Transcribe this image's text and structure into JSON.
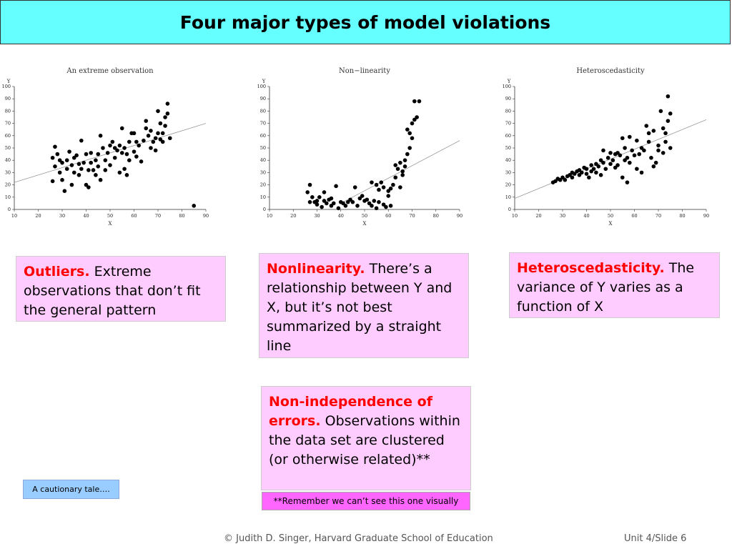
{
  "slide": {
    "title": "Four major types of model violations",
    "footer_left": "© Judith D. Singer, Harvard Graduate School of Education",
    "footer_right": "Unit 4/Slide 6",
    "cautionary_button": "A cautionary tale….",
    "remember_note": "**Remember we can’t see this one visually"
  },
  "boxes": {
    "outliers": {
      "heading": "Outliers.",
      "text": " Extreme observations that don’t fit the general pattern"
    },
    "nonlinearity": {
      "heading": "Nonlinearity.",
      "text": " There’s a relationship between Y and X, but it’s not best summarized by a straight line"
    },
    "hetero": {
      "heading": "Heteroscedasticity.",
      "text": " The variance of Y varies as a function of X"
    },
    "nonindep": {
      "heading": "Non-independence of errors.",
      "text": " Observations within the data set are clustered (or otherwise related)**"
    }
  },
  "colors": {
    "title_bg": "#66ffff",
    "box_bg": "#ffccff",
    "heading": "#ff0000",
    "note_bg": "#ff66ff",
    "button_bg": "#99ccff"
  },
  "chart_data": [
    {
      "type": "scatter",
      "title": "An extreme observation",
      "xlabel": "X",
      "ylabel": "Y",
      "xlim": [
        10,
        90
      ],
      "ylim": [
        0,
        100
      ],
      "xticks": [
        10,
        20,
        30,
        40,
        50,
        60,
        70,
        80,
        90
      ],
      "yticks": [
        0,
        10,
        20,
        30,
        40,
        50,
        60,
        70,
        80,
        90,
        100
      ],
      "fit_line": [
        [
          10,
          22
        ],
        [
          90,
          70
        ]
      ],
      "points": [
        [
          26,
          42
        ],
        [
          26,
          23
        ],
        [
          27,
          35
        ],
        [
          27,
          51
        ],
        [
          28,
          45
        ],
        [
          29,
          40
        ],
        [
          29,
          30
        ],
        [
          30,
          24
        ],
        [
          30,
          38
        ],
        [
          31,
          15
        ],
        [
          32,
          33
        ],
        [
          32,
          40
        ],
        [
          33,
          47
        ],
        [
          34,
          36
        ],
        [
          34,
          20
        ],
        [
          35,
          30
        ],
        [
          35,
          42
        ],
        [
          36,
          44
        ],
        [
          37,
          37
        ],
        [
          37,
          28
        ],
        [
          38,
          56
        ],
        [
          38,
          33
        ],
        [
          39,
          38
        ],
        [
          40,
          20
        ],
        [
          40,
          45
        ],
        [
          41,
          18
        ],
        [
          41,
          32
        ],
        [
          42,
          46
        ],
        [
          42,
          38
        ],
        [
          43,
          32
        ],
        [
          44,
          40
        ],
        [
          44,
          28
        ],
        [
          45,
          45
        ],
        [
          45,
          35
        ],
        [
          46,
          24
        ],
        [
          46,
          60
        ],
        [
          47,
          50
        ],
        [
          48,
          40
        ],
        [
          48,
          32
        ],
        [
          49,
          46
        ],
        [
          50,
          52
        ],
        [
          50,
          36
        ],
        [
          51,
          55
        ],
        [
          52,
          42
        ],
        [
          52,
          50
        ],
        [
          53,
          48
        ],
        [
          54,
          52
        ],
        [
          54,
          30
        ],
        [
          55,
          46
        ],
        [
          55,
          66
        ],
        [
          56,
          33
        ],
        [
          56,
          50
        ],
        [
          57,
          28
        ],
        [
          57,
          45
        ],
        [
          58,
          55
        ],
        [
          58,
          40
        ],
        [
          59,
          62
        ],
        [
          60,
          47
        ],
        [
          60,
          62
        ],
        [
          61,
          43
        ],
        [
          61,
          55
        ],
        [
          62,
          52
        ],
        [
          63,
          39
        ],
        [
          64,
          56
        ],
        [
          65,
          72
        ],
        [
          65,
          66
        ],
        [
          66,
          60
        ],
        [
          67,
          50
        ],
        [
          67,
          64
        ],
        [
          68,
          55
        ],
        [
          69,
          48
        ],
        [
          69,
          58
        ],
        [
          70,
          62
        ],
        [
          70,
          80
        ],
        [
          71,
          57
        ],
        [
          71,
          70
        ],
        [
          72,
          62
        ],
        [
          72,
          55
        ],
        [
          73,
          75
        ],
        [
          73,
          68
        ],
        [
          74,
          86
        ],
        [
          74,
          78
        ],
        [
          75,
          58
        ],
        [
          85,
          3
        ]
      ]
    },
    {
      "type": "scatter",
      "title": "Non−linearity",
      "xlabel": "X",
      "ylabel": "Y",
      "xlim": [
        10,
        90
      ],
      "ylim": [
        0,
        100
      ],
      "xticks": [
        10,
        20,
        30,
        40,
        50,
        60,
        70,
        80,
        90
      ],
      "yticks": [
        0,
        10,
        20,
        30,
        40,
        50,
        60,
        70,
        80,
        90,
        100
      ],
      "fit_line": [
        [
          40,
          5
        ],
        [
          90,
          56
        ]
      ],
      "points": [
        [
          26,
          14
        ],
        [
          27,
          20
        ],
        [
          27,
          6
        ],
        [
          28,
          10
        ],
        [
          29,
          6
        ],
        [
          30,
          4
        ],
        [
          30,
          7
        ],
        [
          31,
          10
        ],
        [
          32,
          2
        ],
        [
          33,
          14
        ],
        [
          33,
          7
        ],
        [
          34,
          5
        ],
        [
          35,
          8
        ],
        [
          36,
          9
        ],
        [
          36,
          3
        ],
        [
          37,
          5
        ],
        [
          38,
          19
        ],
        [
          39,
          1
        ],
        [
          40,
          6
        ],
        [
          41,
          5
        ],
        [
          42,
          3
        ],
        [
          43,
          6
        ],
        [
          44,
          8
        ],
        [
          45,
          6
        ],
        [
          46,
          18
        ],
        [
          47,
          3
        ],
        [
          48,
          9
        ],
        [
          49,
          11
        ],
        [
          50,
          7
        ],
        [
          51,
          8
        ],
        [
          52,
          5
        ],
        [
          53,
          22
        ],
        [
          53,
          3
        ],
        [
          54,
          7
        ],
        [
          55,
          1
        ],
        [
          55,
          20
        ],
        [
          56,
          6
        ],
        [
          56,
          16
        ],
        [
          57,
          22
        ],
        [
          58,
          4
        ],
        [
          58,
          18
        ],
        [
          59,
          2
        ],
        [
          60,
          15
        ],
        [
          60,
          11
        ],
        [
          61,
          17
        ],
        [
          61,
          3
        ],
        [
          62,
          20
        ],
        [
          63,
          36
        ],
        [
          63,
          26
        ],
        [
          64,
          33
        ],
        [
          65,
          18
        ],
        [
          65,
          38
        ],
        [
          66,
          28
        ],
        [
          66,
          31
        ],
        [
          67,
          40
        ],
        [
          67,
          35
        ],
        [
          68,
          45
        ],
        [
          68,
          65
        ],
        [
          69,
          50
        ],
        [
          69,
          62
        ],
        [
          70,
          70
        ],
        [
          70,
          58
        ],
        [
          71,
          73
        ],
        [
          71,
          88
        ],
        [
          72,
          75
        ],
        [
          73,
          88
        ]
      ]
    },
    {
      "type": "scatter",
      "title": "Heteroscedasticity",
      "xlabel": "X",
      "ylabel": "Y",
      "xlim": [
        10,
        90
      ],
      "ylim": [
        0,
        100
      ],
      "xticks": [
        10,
        20,
        30,
        40,
        50,
        60,
        70,
        80,
        90
      ],
      "yticks": [
        0,
        10,
        20,
        30,
        40,
        50,
        60,
        70,
        80,
        90,
        100
      ],
      "fit_line": [
        [
          10,
          9
        ],
        [
          90,
          73
        ]
      ],
      "points": [
        [
          26,
          22
        ],
        [
          27,
          23
        ],
        [
          28,
          25
        ],
        [
          29,
          24
        ],
        [
          30,
          26
        ],
        [
          31,
          24
        ],
        [
          32,
          27
        ],
        [
          33,
          28
        ],
        [
          34,
          26
        ],
        [
          34,
          30
        ],
        [
          35,
          29
        ],
        [
          36,
          31
        ],
        [
          37,
          28
        ],
        [
          37,
          32
        ],
        [
          38,
          30
        ],
        [
          39,
          34
        ],
        [
          40,
          29
        ],
        [
          40,
          33
        ],
        [
          41,
          26
        ],
        [
          42,
          36
        ],
        [
          42,
          31
        ],
        [
          43,
          33
        ],
        [
          44,
          30
        ],
        [
          44,
          37
        ],
        [
          45,
          35
        ],
        [
          46,
          40
        ],
        [
          46,
          28
        ],
        [
          47,
          38
        ],
        [
          47,
          48
        ],
        [
          48,
          33
        ],
        [
          49,
          42
        ],
        [
          50,
          37
        ],
        [
          50,
          46
        ],
        [
          51,
          40
        ],
        [
          52,
          45
        ],
        [
          52,
          34
        ],
        [
          53,
          36
        ],
        [
          53,
          46
        ],
        [
          54,
          44
        ],
        [
          55,
          26
        ],
        [
          55,
          58
        ],
        [
          56,
          40
        ],
        [
          56,
          50
        ],
        [
          57,
          42
        ],
        [
          57,
          22
        ],
        [
          58,
          38
        ],
        [
          58,
          59
        ],
        [
          59,
          48
        ],
        [
          60,
          44
        ],
        [
          61,
          56
        ],
        [
          61,
          33
        ],
        [
          62,
          45
        ],
        [
          63,
          50
        ],
        [
          63,
          30
        ],
        [
          64,
          48
        ],
        [
          65,
          68
        ],
        [
          66,
          55
        ],
        [
          66,
          62
        ],
        [
          67,
          42
        ],
        [
          68,
          64
        ],
        [
          68,
          35
        ],
        [
          69,
          38
        ],
        [
          70,
          48
        ],
        [
          70,
          52
        ],
        [
          71,
          80
        ],
        [
          72,
          46
        ],
        [
          72,
          66
        ],
        [
          73,
          62
        ],
        [
          73,
          55
        ],
        [
          74,
          72
        ],
        [
          74,
          92
        ],
        [
          75,
          78
        ],
        [
          75,
          50
        ]
      ]
    }
  ]
}
